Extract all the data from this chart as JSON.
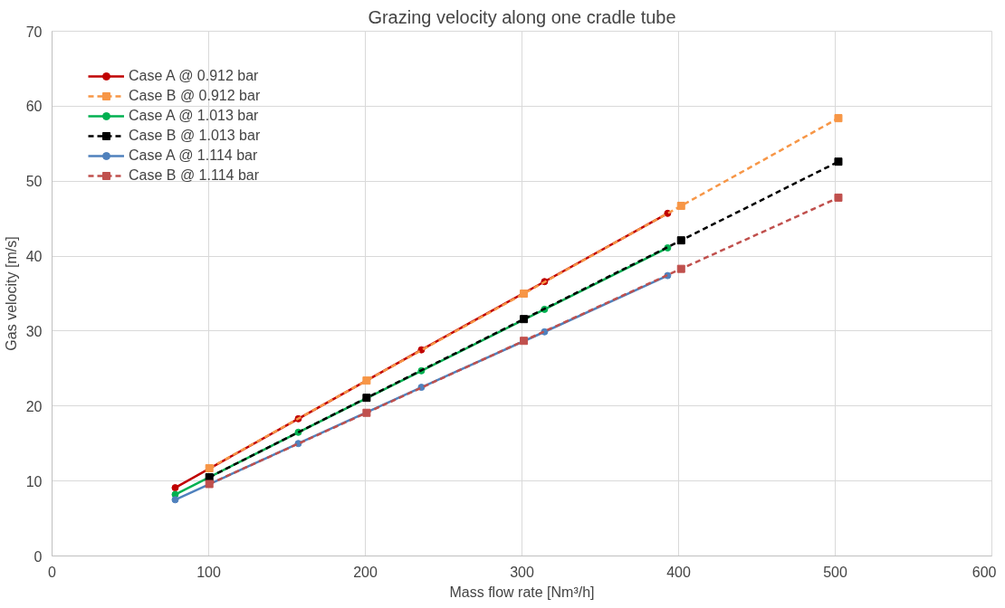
{
  "chart_data": {
    "type": "line",
    "title": "Grazing velocity along one cradle tube",
    "xlabel": "Mass flow rate [Nm³/h]",
    "ylabel": "Gas velocity [m/s]",
    "xlim": [
      0,
      600
    ],
    "xticks": [
      0,
      100,
      200,
      300,
      400,
      500,
      600
    ],
    "ylim": [
      0,
      70
    ],
    "yticks": [
      0,
      10,
      20,
      30,
      40,
      50,
      60,
      70
    ],
    "grid": true,
    "legend": "top left",
    "series": [
      {
        "name": "Case A @ 0.912 bar",
        "color": "#c00000",
        "marker": "circle",
        "line_style": "solid",
        "x": [
          78.6,
          157.2,
          235.8,
          314.4,
          393
        ],
        "values": [
          9.1,
          18.3,
          27.5,
          36.6,
          45.7
        ]
      },
      {
        "name": "Case B @ 0.912 bar",
        "color": "#f79646",
        "marker": "square",
        "line_style": "dashed",
        "x": [
          100.4,
          200.8,
          301.2,
          401.6,
          502
        ],
        "values": [
          11.7,
          23.4,
          35.0,
          46.7,
          58.4
        ]
      },
      {
        "name": "Case A @ 1.013 bar",
        "color": "#00b050",
        "marker": "circle",
        "line_style": "solid",
        "x": [
          78.6,
          157.2,
          235.8,
          314.4,
          393
        ],
        "values": [
          8.2,
          16.5,
          24.7,
          32.9,
          41.1
        ]
      },
      {
        "name": "Case B @ 1.013 bar",
        "color": "#000000",
        "marker": "square",
        "line_style": "dashed",
        "x": [
          100.4,
          200.8,
          301.2,
          401.6,
          502
        ],
        "values": [
          10.5,
          21.1,
          31.6,
          42.1,
          52.6
        ]
      },
      {
        "name": "Case A @ 1.114 bar",
        "color": "#4f81bd",
        "marker": "circle",
        "line_style": "solid",
        "x": [
          78.6,
          157.2,
          235.8,
          314.4,
          393
        ],
        "values": [
          7.5,
          15.0,
          22.5,
          29.9,
          37.4
        ]
      },
      {
        "name": "Case B @ 1.114 bar",
        "color": "#c0504d",
        "marker": "square",
        "line_style": "dashed",
        "x": [
          100.4,
          200.8,
          301.2,
          401.6,
          502
        ],
        "values": [
          9.6,
          19.1,
          28.7,
          38.3,
          47.8
        ]
      }
    ]
  }
}
